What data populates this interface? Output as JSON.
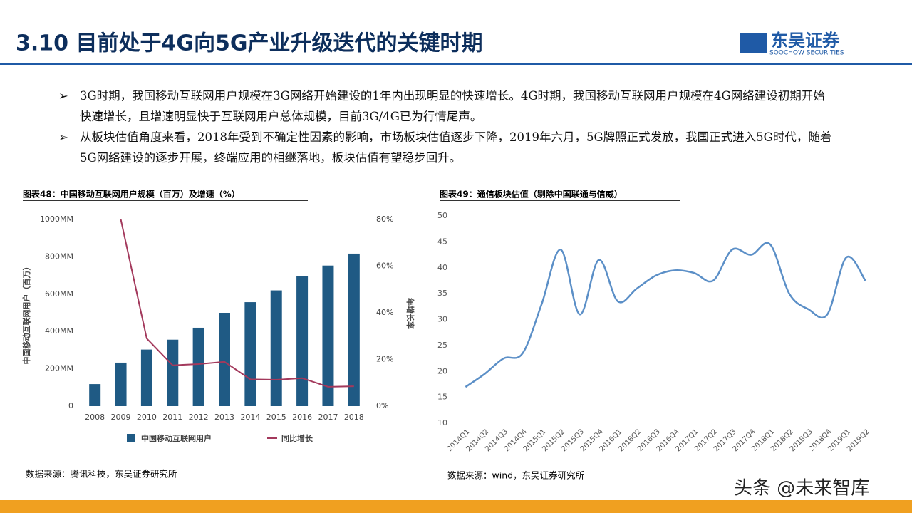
{
  "header": {
    "title": "3.10 目前处于4G向5G产业升级迭代的关键时期",
    "logo": "东吴证券",
    "logo_en": "SOOCHOW SECURITIES"
  },
  "bullets": [
    "3G时期，我国移动互联网用户规模在3G网络开始建设的1年内出现明显的快速增长。4G时期，我国移动互联网用户规模在4G网络建设初期开始快速增长，且增速明显快于互联网用户总体规模，目前3G/4G已为行情尾声。",
    "从板块估值角度来看，2018年受到不确定性因素的影响，市场板块估值逐步下降，2019年六月，5G牌照正式发放，我国正式进入5G时代，随着5G网络建设的逐步开展，终端应用的相继落地，板块估值有望稳步回升。"
  ],
  "chart_data": [
    {
      "type": "bar_line",
      "title": "图表48：中国移动互联网用户规模（百万）及增速（%）",
      "ylabel": "中国移动互联网用户（百万）",
      "y2label": "年增长率",
      "categories": [
        "2008",
        "2009",
        "2010",
        "2011",
        "2012",
        "2013",
        "2014",
        "2015",
        "2016",
        "2017",
        "2018"
      ],
      "series": [
        {
          "name": "中国移动互联网用户",
          "type": "bar",
          "color": "#1f5a84",
          "values": [
            118,
            233,
            303,
            356,
            420,
            500,
            557,
            620,
            695,
            753,
            817
          ]
        },
        {
          "name": "同比增长",
          "type": "line",
          "axis": "y2",
          "color": "#a3395c",
          "values": [
            null,
            80,
            29,
            17.5,
            18,
            19,
            11.5,
            11.3,
            12,
            8.3,
            8.5
          ]
        }
      ],
      "ylim": [
        0,
        1000
      ],
      "yticks": [
        0,
        {
          "value": 200,
          "label": "200MM"
        },
        {
          "value": 400,
          "label": "400MM"
        },
        {
          "value": 600,
          "label": "600MM"
        },
        {
          "value": 800,
          "label": "800MM"
        },
        {
          "value": 1000,
          "label": "1000MM"
        }
      ],
      "y2lim": [
        0,
        80
      ],
      "y2ticks": [
        {
          "value": 0,
          "label": "0%"
        },
        {
          "value": 20,
          "label": "20%"
        },
        {
          "value": 40,
          "label": "40%"
        },
        {
          "value": 60,
          "label": "60%"
        },
        {
          "value": 80,
          "label": "80%"
        }
      ],
      "source": "数据来源：腾讯科技，东吴证券研究所"
    },
    {
      "type": "line",
      "title": "图表49：通信板块估值（剔除中国联通与信威）",
      "categories": [
        "2014Q1",
        "2014Q2",
        "2014Q3",
        "2014Q4",
        "2015Q1",
        "2015Q2",
        "2015Q3",
        "2015Q4",
        "2016Q1",
        "2016Q2",
        "2016Q3",
        "2016Q4",
        "2017Q1",
        "2017Q2",
        "2017Q3",
        "2017Q4",
        "2018Q1",
        "2018Q2",
        "2018Q3",
        "2018Q4",
        "2019Q1",
        "2019Q2"
      ],
      "values": [
        17,
        19.5,
        22.5,
        23.5,
        33,
        43.5,
        31,
        41.5,
        33.5,
        36,
        38.5,
        39.5,
        39,
        37.5,
        43.5,
        42.5,
        44.5,
        35,
        32,
        31,
        42,
        37.5
      ],
      "color": "#5b8fc7",
      "ylim": [
        10,
        50
      ],
      "yticks": [
        10,
        15,
        20,
        25,
        30,
        35,
        40,
        45,
        50
      ],
      "source": "数据来源：wind，东吴证券研究所"
    }
  ],
  "watermark": "头条 @未来智库"
}
